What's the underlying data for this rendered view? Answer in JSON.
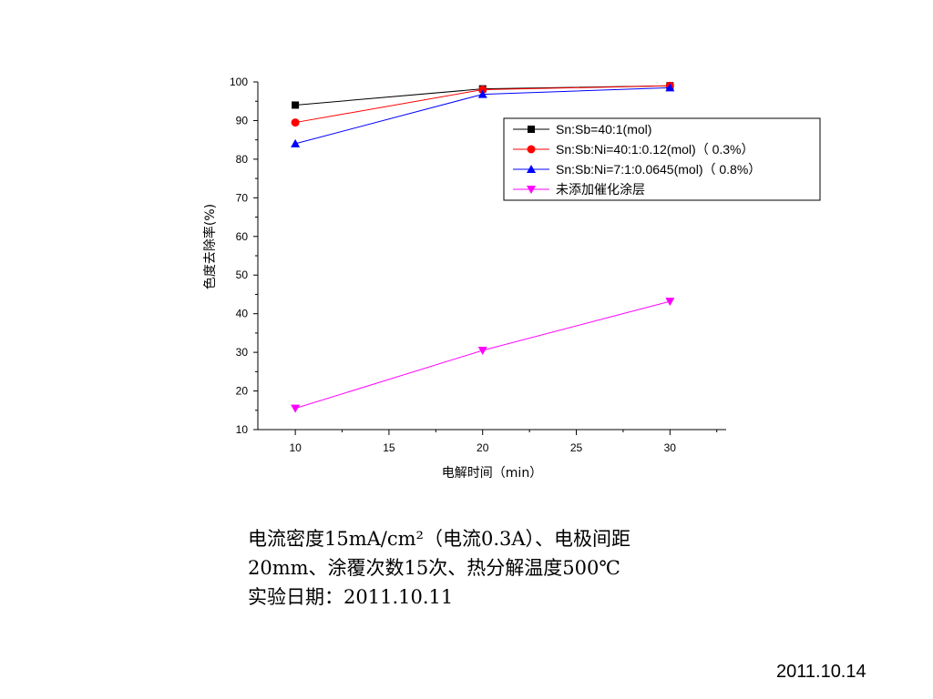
{
  "chart_data": {
    "type": "line",
    "xlabel": "电解时间（min）",
    "ylabel": "色度去除率(%)",
    "xlim": [
      8,
      33
    ],
    "ylim": [
      10,
      100
    ],
    "xticks": [
      10,
      15,
      20,
      25,
      30
    ],
    "yticks": [
      10,
      20,
      30,
      40,
      50,
      60,
      70,
      80,
      90,
      100
    ],
    "legend_position": "top-right",
    "series": [
      {
        "name": "Sn:Sb=40:1(mol)",
        "color": "#000000",
        "marker": "square",
        "x": [
          10,
          20,
          30
        ],
        "y": [
          94,
          98.2,
          99
        ]
      },
      {
        "name": "Sn:Sb:Ni=40:1:0.12(mol)（ 0.3%）",
        "color": "#ff0000",
        "marker": "circle",
        "x": [
          10,
          20,
          30
        ],
        "y": [
          89.5,
          98,
          99
        ]
      },
      {
        "name": "Sn:Sb:Ni=7:1:0.0645(mol)（ 0.8%）",
        "color": "#0000ff",
        "marker": "triangle-up",
        "x": [
          10,
          20,
          30
        ],
        "y": [
          84,
          96.8,
          98.5
        ]
      },
      {
        "name": "未添加催化涂层",
        "color": "#ff00ff",
        "marker": "triangle-down",
        "x": [
          10,
          20,
          30
        ],
        "y": [
          15.5,
          30.5,
          43.2
        ]
      }
    ]
  },
  "caption": {
    "line1": "电流密度15mA/cm²（电流0.3A）、电极间距",
    "line2": "20mm、涂覆次数15次、热分解温度500℃",
    "line3": "实验日期：2011.10.11"
  },
  "slide_date": "2011.10.14"
}
